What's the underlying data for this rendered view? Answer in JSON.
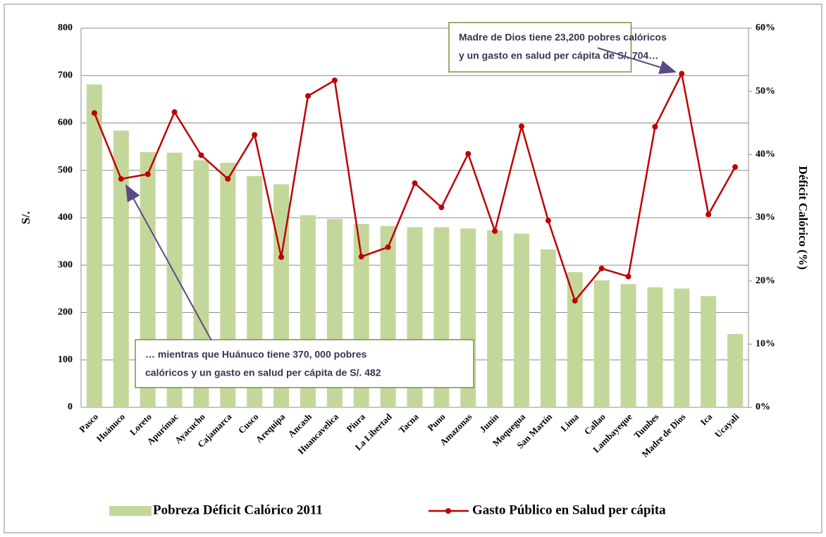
{
  "chart_data": {
    "type": "bar_line",
    "ylabel": "S/.",
    "y2label": "Déficit Calórico (%)",
    "categories": [
      "Pasco",
      "Huánuco",
      "Loreto",
      "Apurímac",
      "Ayacucho",
      "Cajamarca",
      "Cusco",
      "Arequipa",
      "Ancash",
      "Huancavelica",
      "Piura",
      "La Libertad",
      "Tacna",
      "Puno",
      "Amazonas",
      "Junín",
      "Moquegua",
      "San Martín",
      "Lima",
      "Callao",
      "Lambayeque",
      "Tumbes",
      "Madre de Dios",
      "Ica",
      "Ucayali"
    ],
    "series": [
      {
        "name": "Pobreza Déficit Calórico 2011",
        "type": "bar",
        "axis": "y2",
        "color": "#c4d79b",
        "values": [
          51.1,
          43.8,
          40.4,
          40.3,
          39.1,
          38.7,
          36.6,
          35.3,
          30.4,
          29.8,
          29.0,
          28.7,
          28.5,
          28.5,
          28.3,
          28.0,
          27.5,
          25.0,
          21.4,
          20.1,
          19.5,
          19.0,
          18.8,
          17.6,
          11.6
        ]
      },
      {
        "name": "Gasto Público en Salud per cápita",
        "type": "line",
        "axis": "y",
        "color": "#c00000",
        "values": [
          621,
          482,
          492,
          623,
          532,
          482,
          575,
          317,
          657,
          690,
          318,
          338,
          473,
          422,
          535,
          372,
          593,
          394,
          225,
          293,
          276,
          592,
          704,
          407,
          507
        ]
      }
    ],
    "ylim": [
      0,
      800
    ],
    "yticks": [
      0,
      100,
      200,
      300,
      400,
      500,
      600,
      700,
      800
    ],
    "y2lim": [
      0,
      60
    ],
    "y2ticks": [
      {
        "value": 0,
        "label": "0%"
      },
      {
        "value": 10,
        "label": "10%"
      },
      {
        "value": 20,
        "label": "20%"
      },
      {
        "value": 30,
        "label": "30%"
      },
      {
        "value": 40,
        "label": "40%"
      },
      {
        "value": 50,
        "label": "50%"
      },
      {
        "value": 60,
        "label": "60%"
      }
    ],
    "grid": true,
    "annotations": [
      {
        "lines": [
          "Madre de Dios tiene 23,200 pobres calóricos",
          "y un gasto en salud per cápita de S/. 704…"
        ]
      },
      {
        "lines": [
          "… mientras que Huánuco tiene 370, 000 pobres",
          "calóricos y un gasto en salud per cápita de S/. 482"
        ]
      }
    ]
  }
}
